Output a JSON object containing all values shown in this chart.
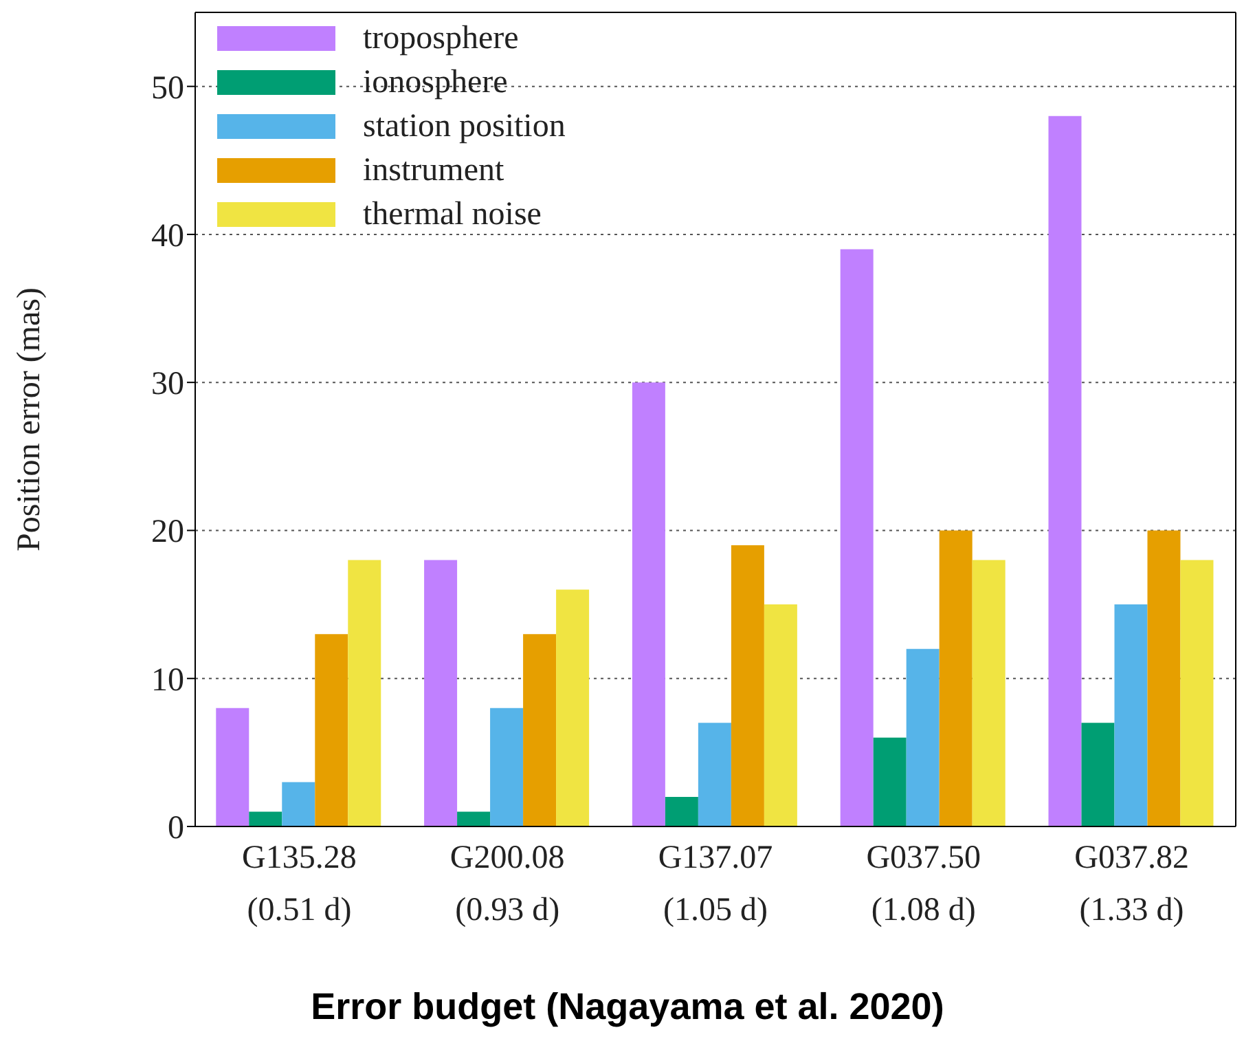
{
  "chart_data": {
    "type": "bar",
    "title": "Error budget (Nagayama et al. 2020)",
    "ylabel": "Position error (mas)",
    "categories": [
      "G135.28\n(0.51 d)",
      "G200.08\n(0.93 d)",
      "G137.07\n(1.05 d)",
      "G037.50\n(1.08 d)",
      "G037.82\n(1.33 d)"
    ],
    "series": [
      {
        "name": "troposphere",
        "color": "#c080ff",
        "values": [
          8,
          18,
          30,
          39,
          48
        ]
      },
      {
        "name": "ionosphere",
        "color": "#009e73",
        "values": [
          1,
          1,
          2,
          6,
          7
        ]
      },
      {
        "name": "station position",
        "color": "#56b4e9",
        "values": [
          3,
          8,
          7,
          12,
          15
        ]
      },
      {
        "name": "instrument",
        "color": "#e69f00",
        "values": [
          13,
          13,
          19,
          20,
          20
        ]
      },
      {
        "name": "thermal noise",
        "color": "#f0e442",
        "values": [
          18,
          16,
          15,
          18,
          18
        ]
      }
    ],
    "ylim": [
      0,
      55
    ],
    "yticks": [
      0,
      10,
      20,
      30,
      40,
      50
    ],
    "grid": "y",
    "legend": "top left"
  }
}
